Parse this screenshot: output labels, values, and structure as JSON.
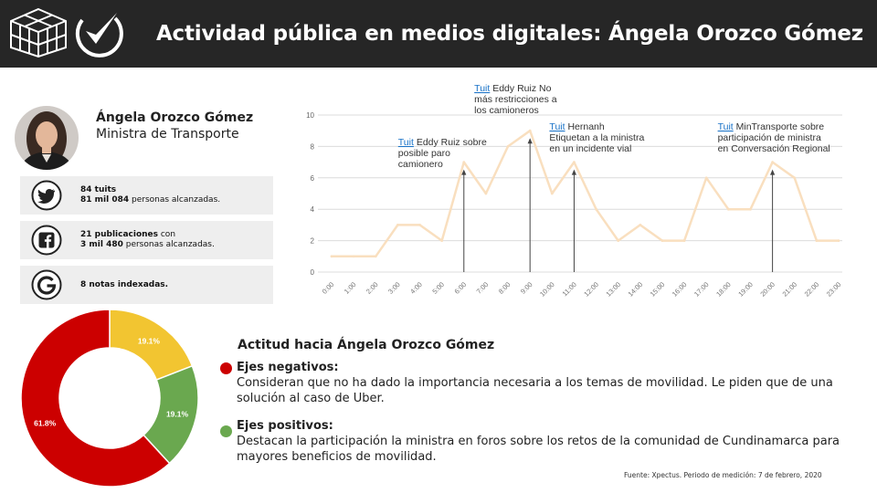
{
  "header": {
    "title": "Actividad pública en medios digitales: Ángela Orozco Gómez",
    "logo_left_icon": "cube-grid-icon",
    "logo_right_icon": "check-circle-icon"
  },
  "profile": {
    "name": "Ángela Orozco Gómez",
    "role": "Ministra de Transporte"
  },
  "stats": [
    {
      "icon": "twitter-icon",
      "line1_bold": "84 tuits",
      "line1_rest": "",
      "line2_bold": "81 mil 084",
      "line2_rest": " personas alcanzadas."
    },
    {
      "icon": "facebook-icon",
      "line1_bold": "21 publicaciones",
      "line1_rest": " con",
      "line2_bold": "3 mil 480",
      "line2_rest": " personas alcanzadas."
    },
    {
      "icon": "google-icon",
      "line1_bold": "8 notas indexadas.",
      "line1_rest": "",
      "line2_bold": "",
      "line2_rest": ""
    }
  ],
  "chart_data": [
    {
      "type": "line",
      "x": [
        "0:00",
        "1:00",
        "2:00",
        "3:00",
        "4:00",
        "5:00",
        "6:00",
        "7:00",
        "8:00",
        "9:00",
        "10:00",
        "11:00",
        "12:00",
        "13:00",
        "14:00",
        "15:00",
        "16:00",
        "17:00",
        "18:00",
        "19:00",
        "20:00",
        "21:00",
        "22:00",
        "23:00"
      ],
      "series": [
        {
          "values": [
            1,
            1,
            1,
            3,
            3,
            2,
            7,
            5,
            8,
            9,
            5,
            7,
            4,
            2,
            3,
            2,
            2,
            6,
            4,
            4,
            7,
            6,
            2,
            2
          ],
          "color": "#f9dfbf"
        }
      ],
      "ylim": [
        0,
        10
      ],
      "yticks": [
        0,
        2,
        4,
        6,
        8,
        10
      ],
      "grid": true,
      "annotations": [
        {
          "x": "6:00",
          "link": "Tuit",
          "lines": [
            " Eddy Ruiz sobre",
            "posible paro",
            "camionero"
          ]
        },
        {
          "x": "9:00",
          "link": "Tuit",
          "lines": [
            " Eddy Ruiz No",
            "más restricciones a",
            "los camioneros"
          ]
        },
        {
          "x": "11:00",
          "link": "Tuit",
          "lines": [
            " Hernanh",
            "Etiquetan a la ministra",
            "en un incidente vial"
          ]
        },
        {
          "x": "20:00",
          "link": "Tuit",
          "lines": [
            " MinTransporte sobre",
            "participación de ministra",
            "en Conversación Regional"
          ]
        }
      ]
    },
    {
      "type": "pie",
      "donut": true,
      "slices": [
        {
          "label": "19.1%",
          "value": 19.1,
          "color": "#f2c531"
        },
        {
          "label": "19.1%",
          "value": 19.1,
          "color": "#6aa84f"
        },
        {
          "label": "61.8%",
          "value": 61.8,
          "color": "#cc0000"
        }
      ]
    }
  ],
  "attitude": {
    "title": "Actitud hacia Ángela Orozco Gómez",
    "negative": {
      "color": "#cc0000",
      "title": "Ejes negativos:",
      "text": "Consideran que no ha dado la importancia necesaria a los temas de movilidad. Le piden que de una solución al caso de Uber."
    },
    "positive": {
      "color": "#6aa84f",
      "title": "Ejes positivos:",
      "text": "Destacan la participación la ministra en foros sobre los retos de la comunidad de Cundinamarca para mayores beneficios de movilidad."
    }
  },
  "source": "Fuente: Xpectus. Periodo de medición:  7 de febrero, 2020"
}
